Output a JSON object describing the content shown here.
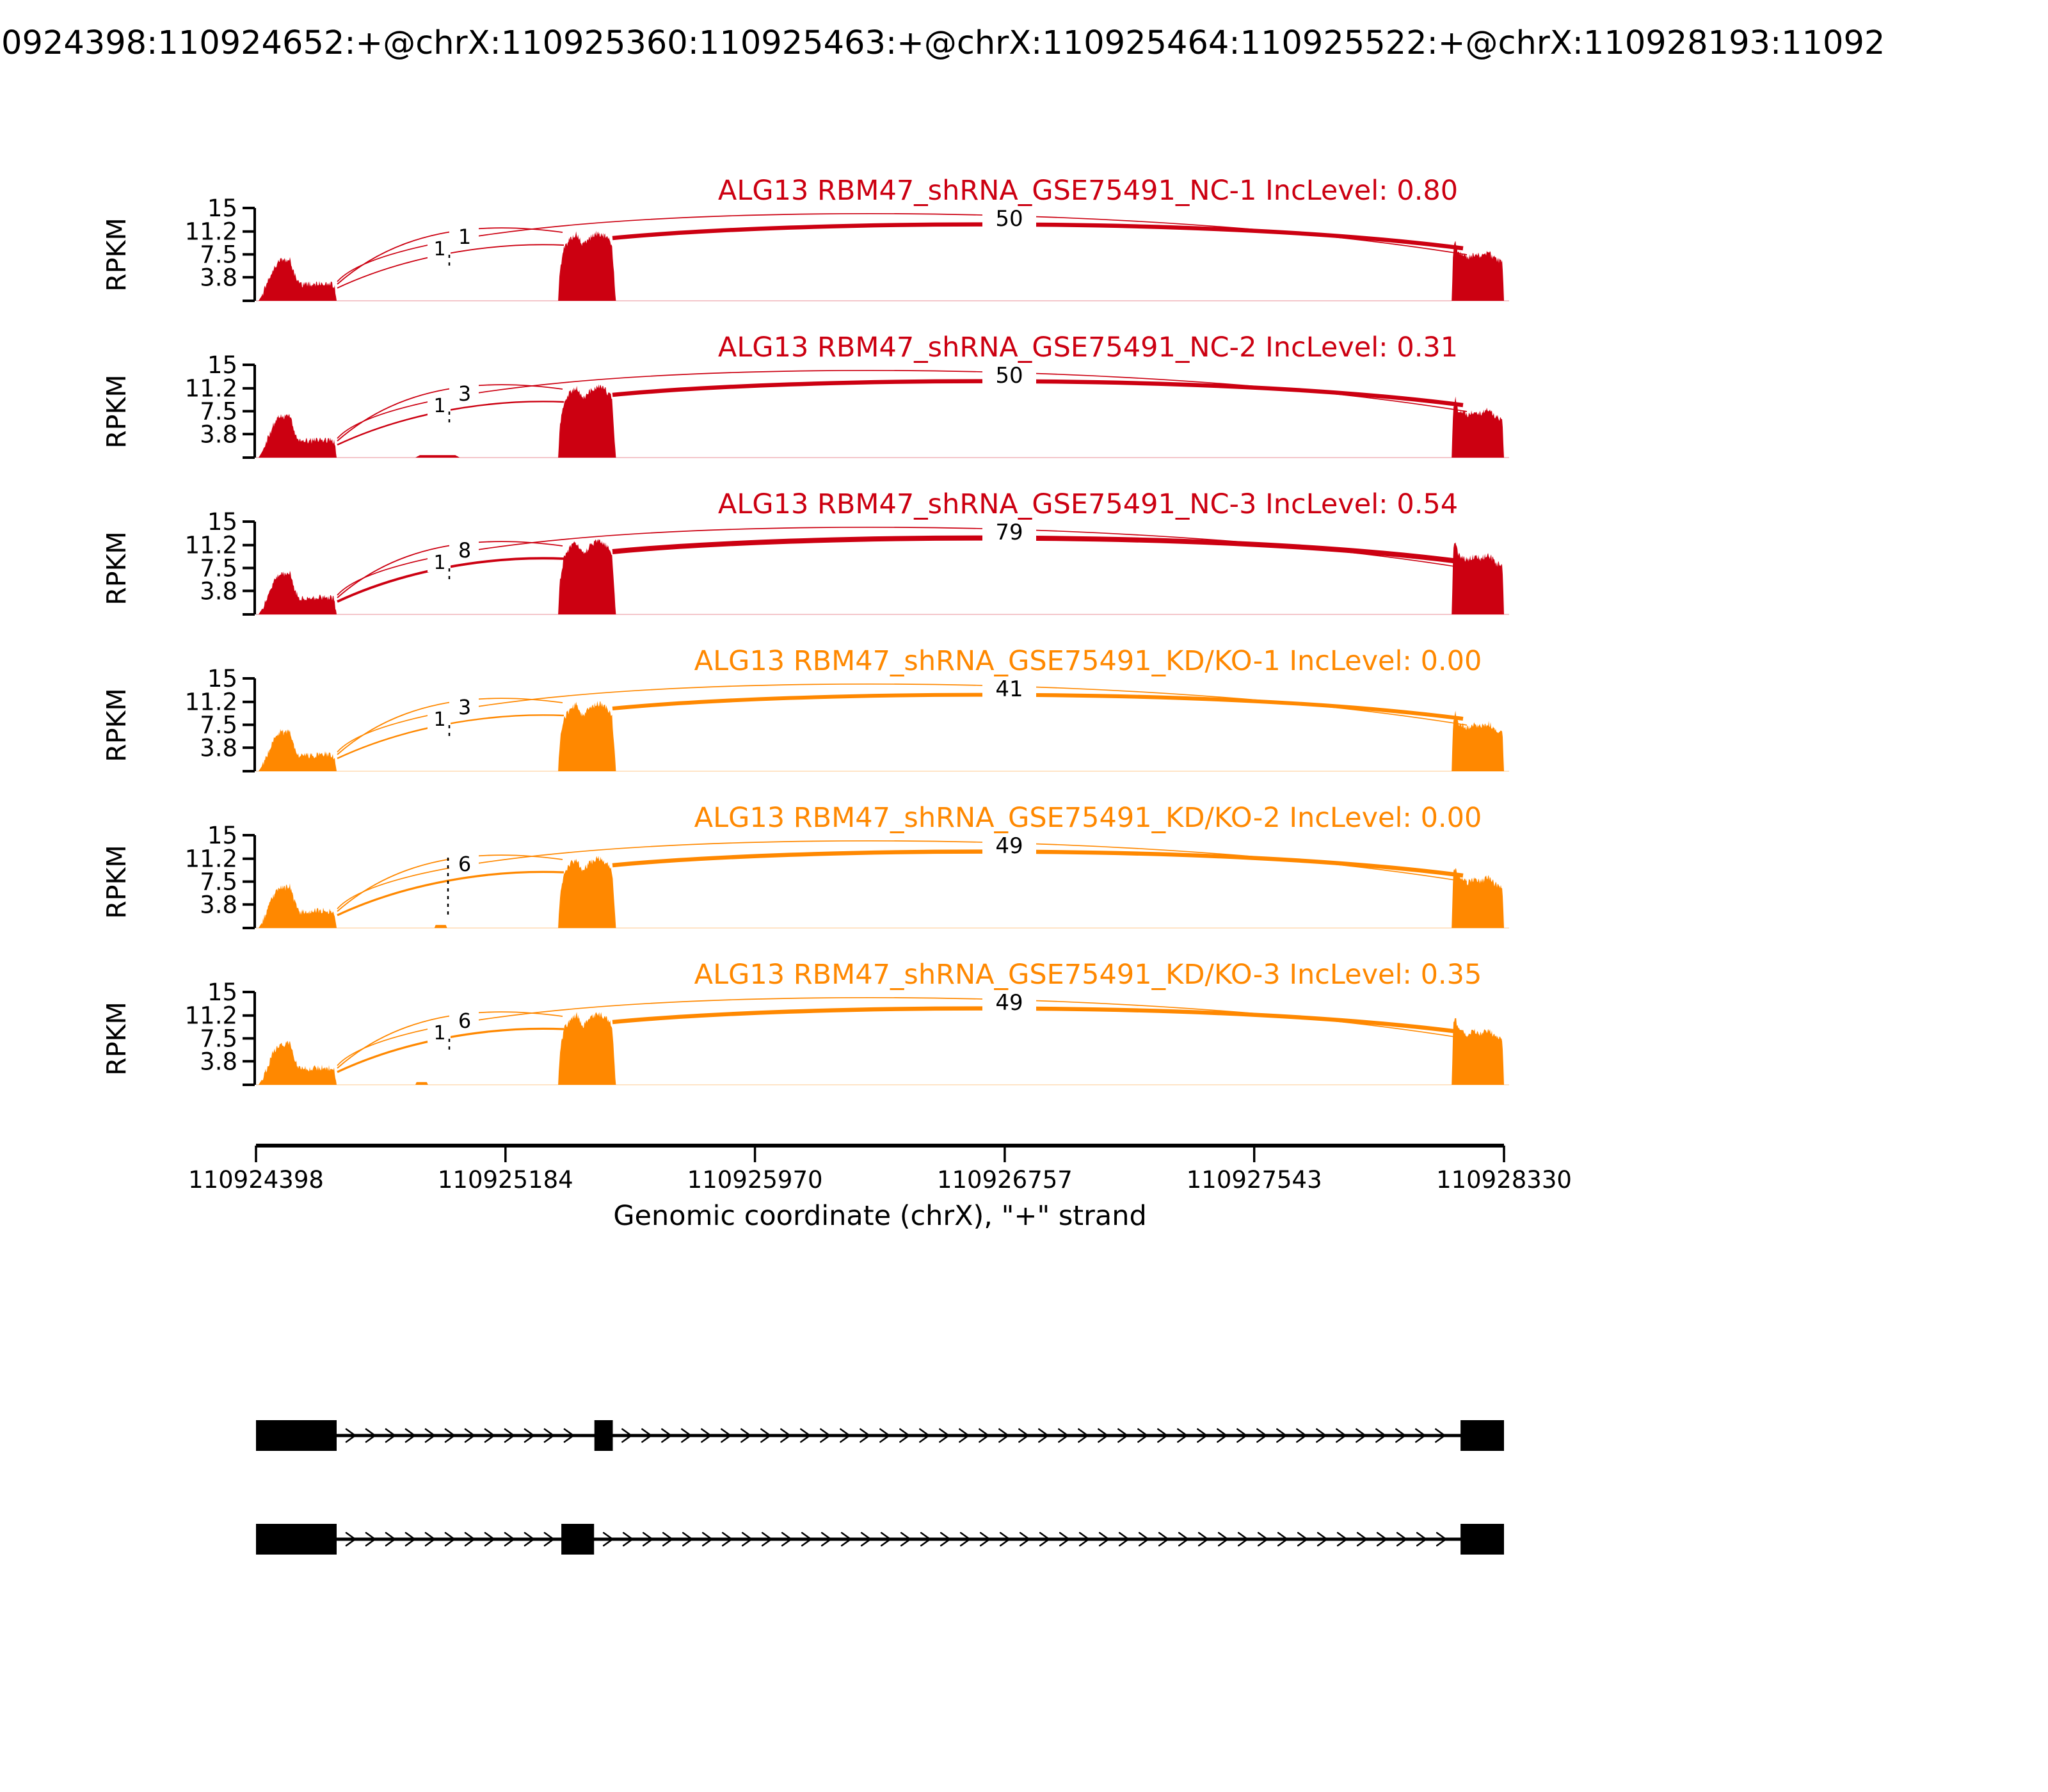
{
  "header": {
    "event_id": "0924398:110924652:+@chrX:110925360:110925463:+@chrX:110925464:110925522:+@chrX:110928193:11092"
  },
  "colors": {
    "group1": "#CC0011",
    "group2": "#FF8800",
    "counts": "#000000"
  },
  "y_axis": {
    "label": "RPKM",
    "ticks": [
      "15",
      "11.2",
      "7.5",
      "3.8"
    ],
    "tick_values": [
      15,
      11.2,
      7.5,
      3.8
    ]
  },
  "x_axis": {
    "label": "Genomic coordinate (chrX), \"+\" strand",
    "tick_labels": [
      "110924398",
      "110925184",
      "110925970",
      "110926757",
      "110927543",
      "110928330"
    ],
    "tick_values": [
      110924398,
      110925184,
      110925970,
      110926757,
      110927543,
      110928330
    ]
  },
  "chart_data": {
    "type": "sashimi",
    "title": "0924398:110924652:+@chrX:110925360:110925463:+@chrX:110925464:110925522:+@chrX:110928193:11092",
    "gene": "ALG13",
    "xlim": [
      110924398,
      110928330
    ],
    "ylim": [
      0,
      15
    ],
    "xlabel": "Genomic coordinate (chrX), \"+\" strand",
    "ylabel": "RPKM",
    "rpkm_ticks": [
      15,
      11.2,
      7.5,
      3.8
    ],
    "tracks": [
      {
        "name": "ALG13 RBM47_shRNA_GSE75491_NC-1 IncLevel: 0.80",
        "group": 1,
        "inc_level": "0.80",
        "junction_counts": [
          "1",
          "1",
          "50"
        ],
        "cov_scale": [
          1.0,
          1.0,
          1.0
        ],
        "tall_dash": false,
        "extra_cov": []
      },
      {
        "name": "ALG13 RBM47_shRNA_GSE75491_NC-2 IncLevel: 0.31",
        "group": 1,
        "inc_level": "0.31",
        "junction_counts": [
          "1",
          "3",
          "50"
        ],
        "cov_scale": [
          1.02,
          1.05,
          1.0
        ],
        "tall_dash": false,
        "extra_cov": [
          [
            110924900,
            110925040,
            0.4
          ]
        ]
      },
      {
        "name": "ALG13 RBM47_shRNA_GSE75491_NC-3 IncLevel: 0.54",
        "group": 1,
        "inc_level": "0.54",
        "junction_counts": [
          "1",
          "8",
          "79"
        ],
        "cov_scale": [
          1.0,
          1.08,
          1.25
        ],
        "tall_dash": false,
        "extra_cov": []
      },
      {
        "name": "ALG13 RBM47_shRNA_GSE75491_KD/KO-1 IncLevel: 0.00",
        "group": 2,
        "inc_level": "0.00",
        "junction_counts": [
          "1",
          "3",
          "41"
        ],
        "cov_scale": [
          0.95,
          1.0,
          1.0
        ],
        "tall_dash": false,
        "extra_cov": []
      },
      {
        "name": "ALG13 RBM47_shRNA_GSE75491_KD/KO-2 IncLevel: 0.00",
        "group": 2,
        "inc_level": "0.00",
        "junction_counts": [
          "",
          "6",
          "49"
        ],
        "cov_scale": [
          1.0,
          1.03,
          1.05
        ],
        "tall_dash": true,
        "extra_cov": [
          [
            110924960,
            110925000,
            0.5
          ]
        ]
      },
      {
        "name": "ALG13 RBM47_shRNA_GSE75491_KD/KO-3 IncLevel: 0.35",
        "group": 2,
        "inc_level": "0.35",
        "junction_counts": [
          "1",
          "6",
          "49"
        ],
        "cov_scale": [
          1.0,
          1.05,
          1.15
        ],
        "tall_dash": false,
        "extra_cov": [
          [
            110924900,
            110924940,
            0.45
          ]
        ]
      }
    ],
    "coverage_regions": {
      "e1": [
        110924406,
        110924652
      ],
      "e2": [
        110925350,
        110925532
      ],
      "e3": [
        110928165,
        110928330
      ]
    },
    "coverage_profiles": {
      "e1": [
        [
          0,
          0
        ],
        [
          0.04,
          0.8
        ],
        [
          0.1,
          2.5
        ],
        [
          0.18,
          5.0
        ],
        [
          0.28,
          6.8
        ],
        [
          0.34,
          6.4
        ],
        [
          0.4,
          6.9
        ],
        [
          0.46,
          4.2
        ],
        [
          0.52,
          2.6
        ],
        [
          0.7,
          2.7
        ],
        [
          0.85,
          2.9
        ],
        [
          0.97,
          2.5
        ],
        [
          1,
          0
        ]
      ],
      "e2": [
        [
          0,
          0
        ],
        [
          0.03,
          5.0
        ],
        [
          0.1,
          8.5
        ],
        [
          0.2,
          10.0
        ],
        [
          0.32,
          10.8
        ],
        [
          0.42,
          9.0
        ],
        [
          0.55,
          10.2
        ],
        [
          0.68,
          11.0
        ],
        [
          0.82,
          10.4
        ],
        [
          0.93,
          9.2
        ],
        [
          1,
          0
        ]
      ],
      "e3": [
        [
          0,
          0
        ],
        [
          0.03,
          8.2
        ],
        [
          0.07,
          9.6
        ],
        [
          0.12,
          7.8
        ],
        [
          0.3,
          7.0
        ],
        [
          0.45,
          7.6
        ],
        [
          0.55,
          7.2
        ],
        [
          0.7,
          7.8
        ],
        [
          0.85,
          6.6
        ],
        [
          0.97,
          6.3
        ],
        [
          1,
          0
        ]
      ]
    },
    "transcripts": [
      {
        "exons": [
          [
            110924398,
            110924652
          ],
          [
            110925464,
            110925522
          ],
          [
            110928193,
            110928330
          ]
        ]
      },
      {
        "exons": [
          [
            110924398,
            110924652
          ],
          [
            110925360,
            110925463
          ],
          [
            110928193,
            110928330
          ]
        ]
      }
    ],
    "strand": "+"
  }
}
